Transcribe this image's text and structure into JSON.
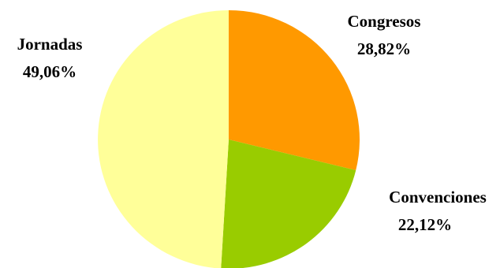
{
  "chart_data": {
    "type": "pie",
    "title": "",
    "start_angle_deg": 0,
    "direction": "clockwise",
    "legend": "none",
    "slices": [
      {
        "name": "Congresos",
        "value": 28.82,
        "label": "28,82%",
        "color": "#FF9900"
      },
      {
        "name": "Convenciones",
        "value": 22.12,
        "label": "22,12%",
        "color": "#99CC00"
      },
      {
        "name": "Jornadas",
        "value": 49.06,
        "label": "49,06%",
        "color": "#FFFF99"
      }
    ]
  }
}
